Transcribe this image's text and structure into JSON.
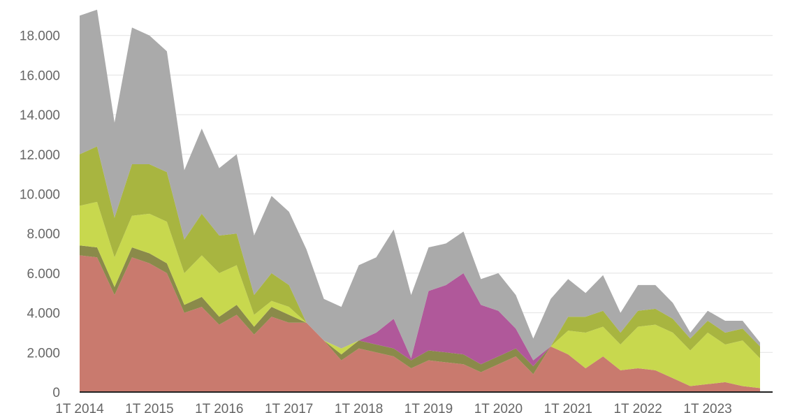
{
  "chart_data": {
    "type": "area",
    "stacked": true,
    "title": "",
    "xlabel": "",
    "ylabel": "",
    "ylim": [
      0,
      20000
    ],
    "yticks": [
      0,
      2000,
      4000,
      6000,
      8000,
      10000,
      12000,
      14000,
      16000,
      18000
    ],
    "ytick_labels": [
      "0",
      "2.000",
      "4.000",
      "6.000",
      "8.000",
      "10.000",
      "12.000",
      "14.000",
      "16.000",
      "18.000"
    ],
    "xtick_labels": [
      "1T 2014",
      "1T 2015",
      "1T 2016",
      "1T 2017",
      "1T 2018",
      "1T 2019",
      "1T 2020",
      "1T 2021",
      "1T 2022",
      "1T 2023"
    ],
    "xtick_indices": [
      0,
      4,
      8,
      12,
      16,
      20,
      24,
      28,
      32,
      36
    ],
    "grid": true,
    "legend": "none",
    "x": [
      "1T 2014",
      "2T 2014",
      "3T 2014",
      "4T 2014",
      "1T 2015",
      "2T 2015",
      "3T 2015",
      "4T 2015",
      "1T 2016",
      "2T 2016",
      "3T 2016",
      "4T 2016",
      "1T 2017",
      "2T 2017",
      "3T 2017",
      "4T 2017",
      "1T 2018",
      "2T 2018",
      "3T 2018",
      "4T 2018",
      "1T 2019",
      "2T 2019",
      "3T 2019",
      "4T 2019",
      "1T 2020",
      "2T 2020",
      "3T 2020",
      "4T 2020",
      "1T 2021",
      "2T 2021",
      "3T 2021",
      "4T 2021",
      "1T 2022",
      "2T 2022",
      "3T 2022",
      "4T 2022",
      "1T 2023",
      "2T 2023",
      "3T 2023",
      "4T 2023"
    ],
    "series": [
      {
        "color": "#c97a6e",
        "values": [
          6900,
          6800,
          4900,
          6800,
          6500,
          6000,
          4000,
          4300,
          3400,
          3900,
          2900,
          3800,
          3500,
          3500,
          2600,
          1600,
          2200,
          2000,
          1800,
          1200,
          1600,
          1500,
          1400,
          1000,
          1400,
          1800,
          900,
          2300,
          1900,
          1200,
          1800,
          1100,
          1200,
          1100,
          700,
          300,
          400,
          500,
          300,
          200
        ]
      },
      {
        "color": "#8a8a4a",
        "values": [
          500,
          500,
          400,
          500,
          500,
          500,
          400,
          500,
          400,
          500,
          400,
          500,
          400,
          0,
          0,
          300,
          400,
          400,
          400,
          400,
          500,
          500,
          500,
          400,
          400,
          400,
          400,
          0,
          0,
          0,
          0,
          0,
          0,
          0,
          0,
          0,
          0,
          0,
          0,
          0
        ]
      },
      {
        "color": "#b0589a",
        "values": [
          0,
          0,
          0,
          0,
          0,
          0,
          0,
          0,
          0,
          0,
          0,
          0,
          0,
          0,
          0,
          0,
          0,
          600,
          1500,
          100,
          3000,
          3400,
          4100,
          3000,
          2300,
          1000,
          300,
          0,
          0,
          0,
          0,
          0,
          0,
          0,
          0,
          0,
          0,
          0,
          0,
          0
        ]
      },
      {
        "color": "#c8d84e",
        "values": [
          2000,
          2300,
          1500,
          1600,
          2000,
          2100,
          1600,
          2100,
          2200,
          2000,
          600,
          300,
          400,
          0,
          0,
          300,
          0,
          0,
          0,
          0,
          0,
          0,
          0,
          0,
          0,
          0,
          0,
          0,
          1200,
          1800,
          1500,
          1300,
          2100,
          2300,
          2300,
          1800,
          2600,
          1900,
          2300,
          1500
        ]
      },
      {
        "color": "#a8b540",
        "values": [
          2600,
          2800,
          2000,
          2600,
          2500,
          2500,
          1700,
          2100,
          1900,
          1600,
          1000,
          1400,
          1100,
          0,
          0,
          0,
          0,
          0,
          0,
          0,
          0,
          0,
          0,
          0,
          0,
          0,
          0,
          0,
          700,
          800,
          800,
          600,
          800,
          800,
          700,
          600,
          600,
          600,
          600,
          600
        ]
      },
      {
        "color": "#aaaaaa",
        "values": [
          7000,
          6900,
          4800,
          6900,
          6500,
          6100,
          3500,
          4300,
          3400,
          4000,
          3000,
          3900,
          3700,
          3700,
          2100,
          2100,
          3800,
          3800,
          4500,
          3200,
          2200,
          2100,
          2100,
          1300,
          1900,
          1700,
          1100,
          2400,
          1900,
          1200,
          1800,
          1000,
          1300,
          1200,
          800,
          300,
          500,
          600,
          400,
          200
        ]
      }
    ]
  }
}
